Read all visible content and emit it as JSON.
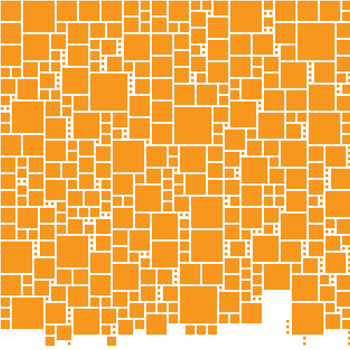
{
  "artwork": {
    "fill_color": "#F7971E",
    "background_color": "#FFFFFF"
  }
}
